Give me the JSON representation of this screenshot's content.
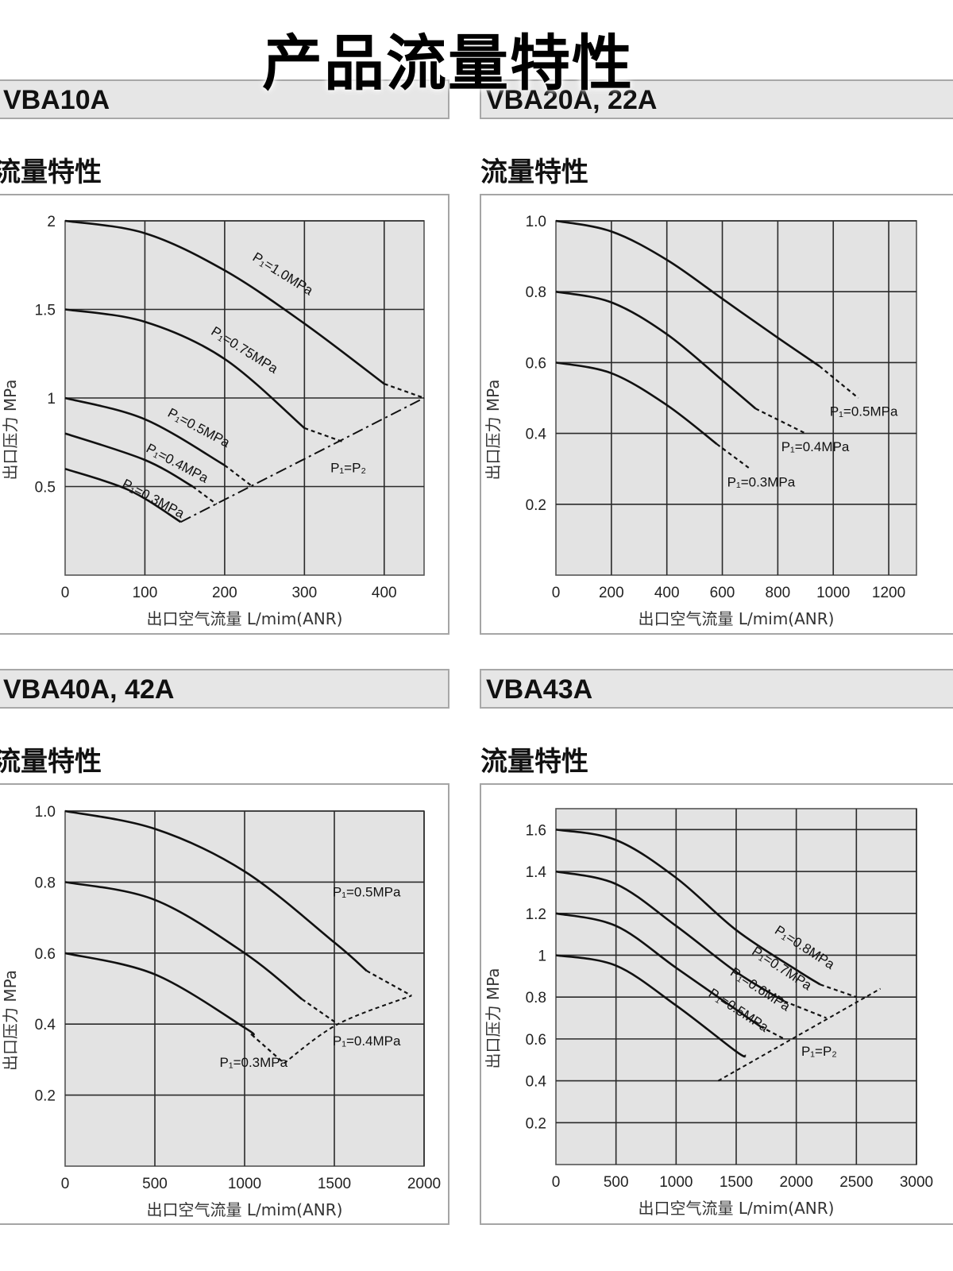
{
  "page_title": "产品流量特性",
  "panels": [
    {
      "model": "VBA10A",
      "section_label": "流量特性",
      "chart_data": {
        "type": "line",
        "xlabel": "出口空气流量 L/mim(ANR)",
        "ylabel": "出口压力 MPa",
        "xlim": [
          0,
          450
        ],
        "ylim": [
          0,
          2
        ],
        "xticks": [
          0,
          100,
          200,
          300,
          400
        ],
        "yticks": [
          0.5,
          1,
          1.5,
          2
        ],
        "ytick_labels": [
          "0.5",
          "1",
          "1.5",
          "2"
        ],
        "grid": true,
        "series": [
          {
            "name": "P₁=1.0MPa",
            "solid": [
              [
                0,
                2.0
              ],
              [
                100,
                1.93
              ],
              [
                200,
                1.72
              ],
              [
                300,
                1.42
              ],
              [
                400,
                1.08
              ]
            ],
            "dashed": [
              [
                400,
                1.08
              ],
              [
                450,
                1.0
              ]
            ]
          },
          {
            "name": "P₁=0.75MPa",
            "solid": [
              [
                0,
                1.5
              ],
              [
                100,
                1.43
              ],
              [
                200,
                1.22
              ],
              [
                300,
                0.83
              ]
            ],
            "dashed": [
              [
                300,
                0.83
              ],
              [
                350,
                0.75
              ]
            ]
          },
          {
            "name": "P₁=0.5MPa",
            "solid": [
              [
                0,
                1.0
              ],
              [
                100,
                0.88
              ],
              [
                200,
                0.62
              ]
            ],
            "dashed": [
              [
                200,
                0.62
              ],
              [
                235,
                0.5
              ]
            ]
          },
          {
            "name": "P₁=0.4MPa",
            "solid": [
              [
                0,
                0.8
              ],
              [
                100,
                0.65
              ],
              [
                160,
                0.5
              ]
            ],
            "dashed": [
              [
                160,
                0.5
              ],
              [
                190,
                0.4
              ]
            ]
          },
          {
            "name": "P₁=0.3MPa",
            "solid": [
              [
                0,
                0.6
              ],
              [
                80,
                0.48
              ],
              [
                145,
                0.3
              ]
            ],
            "dashed": []
          }
        ],
        "limit_line": {
          "name": "P₁=P₂",
          "points": [
            [
              145,
              0.3
            ],
            [
              450,
              1.0
            ]
          ]
        }
      }
    },
    {
      "model": "VBA20A, 22A",
      "section_label": "流量特性",
      "chart_data": {
        "type": "line",
        "xlabel": "出口空气流量 L/mim(ANR)",
        "ylabel": "出口压力 MPa",
        "xlim": [
          0,
          1300
        ],
        "ylim": [
          0,
          1.0
        ],
        "xticks": [
          0,
          200,
          400,
          600,
          800,
          1000,
          1200
        ],
        "yticks": [
          0.2,
          0.4,
          0.6,
          0.8,
          1.0
        ],
        "ytick_labels": [
          "0.2",
          "0.4",
          "0.6",
          "0.8",
          "1.0"
        ],
        "grid": true,
        "series": [
          {
            "name": "P₁=0.5MPa",
            "solid": [
              [
                0,
                1.0
              ],
              [
                200,
                0.97
              ],
              [
                400,
                0.89
              ],
              [
                600,
                0.78
              ],
              [
                800,
                0.67
              ],
              [
                950,
                0.59
              ]
            ],
            "dashed": [
              [
                950,
                0.59
              ],
              [
                1090,
                0.5
              ]
            ]
          },
          {
            "name": "P₁=0.4MPa",
            "solid": [
              [
                0,
                0.8
              ],
              [
                200,
                0.77
              ],
              [
                400,
                0.68
              ],
              [
                600,
                0.55
              ],
              [
                720,
                0.47
              ]
            ],
            "dashed": [
              [
                720,
                0.47
              ],
              [
                900,
                0.4
              ]
            ]
          },
          {
            "name": "P₁=0.3MPa",
            "solid": [
              [
                0,
                0.6
              ],
              [
                200,
                0.57
              ],
              [
                400,
                0.48
              ],
              [
                580,
                0.37
              ]
            ],
            "dashed": [
              [
                580,
                0.37
              ],
              [
                700,
                0.3
              ]
            ]
          }
        ]
      }
    },
    {
      "model": "VBA40A, 42A",
      "section_label": "流量特性",
      "chart_data": {
        "type": "line",
        "xlabel": "出口空气流量 L/mim(ANR)",
        "ylabel": "出口压力 MPa",
        "xlim": [
          0,
          2000
        ],
        "ylim": [
          0,
          1.0
        ],
        "xticks": [
          0,
          500,
          1000,
          1500,
          2000
        ],
        "yticks": [
          0.2,
          0.4,
          0.6,
          0.8,
          1.0
        ],
        "ytick_labels": [
          "0.2",
          "0.4",
          "0.6",
          "0.8",
          "1.0"
        ],
        "grid": true,
        "series": [
          {
            "name": "P₁=0.5MPa",
            "solid": [
              [
                0,
                1.0
              ],
              [
                500,
                0.95
              ],
              [
                1000,
                0.83
              ],
              [
                1500,
                0.63
              ],
              [
                1680,
                0.55
              ]
            ],
            "dashed": [
              [
                1680,
                0.55
              ],
              [
                1930,
                0.48
              ]
            ]
          },
          {
            "name": "P₁=0.4MPa",
            "solid": [
              [
                0,
                0.8
              ],
              [
                500,
                0.75
              ],
              [
                1000,
                0.6
              ],
              [
                1320,
                0.47
              ]
            ],
            "dashed": [
              [
                1320,
                0.47
              ],
              [
                1520,
                0.4
              ]
            ]
          },
          {
            "name": "P₁=0.3MPa",
            "solid": [
              [
                0,
                0.6
              ],
              [
                500,
                0.54
              ],
              [
                1000,
                0.39
              ],
              [
                1040,
                0.37
              ]
            ],
            "dashed": [
              [
                1040,
                0.37
              ],
              [
                1220,
                0.29
              ]
            ]
          }
        ],
        "limit_line": {
          "name": "",
          "points": [
            [
              1220,
              0.29
            ],
            [
              1520,
              0.4
            ],
            [
              1930,
              0.48
            ]
          ]
        }
      }
    },
    {
      "model": "VBA43A",
      "section_label": "流量特性",
      "chart_data": {
        "type": "line",
        "xlabel": "出口空气流量 L/mim(ANR)",
        "ylabel": "出口压力 MPa",
        "xlim": [
          0,
          3000
        ],
        "ylim": [
          0,
          1.7
        ],
        "xticks": [
          0,
          500,
          1000,
          1500,
          2000,
          2500,
          3000
        ],
        "yticks": [
          0.2,
          0.4,
          0.6,
          0.8,
          1,
          1.2,
          1.4,
          1.6
        ],
        "ytick_labels": [
          "0.2",
          "0.4",
          "0.6",
          "0.8",
          "1",
          "1.2",
          "1.4",
          "1.6"
        ],
        "grid": true,
        "series": [
          {
            "name": "P₁=0.8MPa",
            "solid": [
              [
                0,
                1.6
              ],
              [
                500,
                1.55
              ],
              [
                1000,
                1.37
              ],
              [
                1500,
                1.12
              ],
              [
                2000,
                0.93
              ],
              [
                2200,
                0.86
              ]
            ],
            "dashed": [
              [
                2200,
                0.86
              ],
              [
                2500,
                0.8
              ]
            ]
          },
          {
            "name": "P₁=0.7MPa",
            "solid": [
              [
                0,
                1.4
              ],
              [
                500,
                1.34
              ],
              [
                1000,
                1.14
              ],
              [
                1500,
                0.92
              ],
              [
                1900,
                0.78
              ]
            ],
            "dashed": [
              [
                1900,
                0.78
              ],
              [
                2250,
                0.7
              ]
            ]
          },
          {
            "name": "P₁=0.6MPa",
            "solid": [
              [
                0,
                1.2
              ],
              [
                500,
                1.14
              ],
              [
                1000,
                0.94
              ],
              [
                1500,
                0.74
              ],
              [
                1700,
                0.66
              ]
            ],
            "dashed": [
              [
                1700,
                0.66
              ],
              [
                1900,
                0.6
              ]
            ]
          },
          {
            "name": "P₁=0.5MPa",
            "solid": [
              [
                0,
                1.0
              ],
              [
                500,
                0.95
              ],
              [
                1000,
                0.76
              ],
              [
                1500,
                0.54
              ],
              [
                1580,
                0.52
              ]
            ],
            "dashed": []
          }
        ],
        "limit_line": {
          "name": "P₁=P₂",
          "points": [
            [
              1350,
              0.4
            ],
            [
              2700,
              0.84
            ]
          ]
        }
      }
    }
  ]
}
